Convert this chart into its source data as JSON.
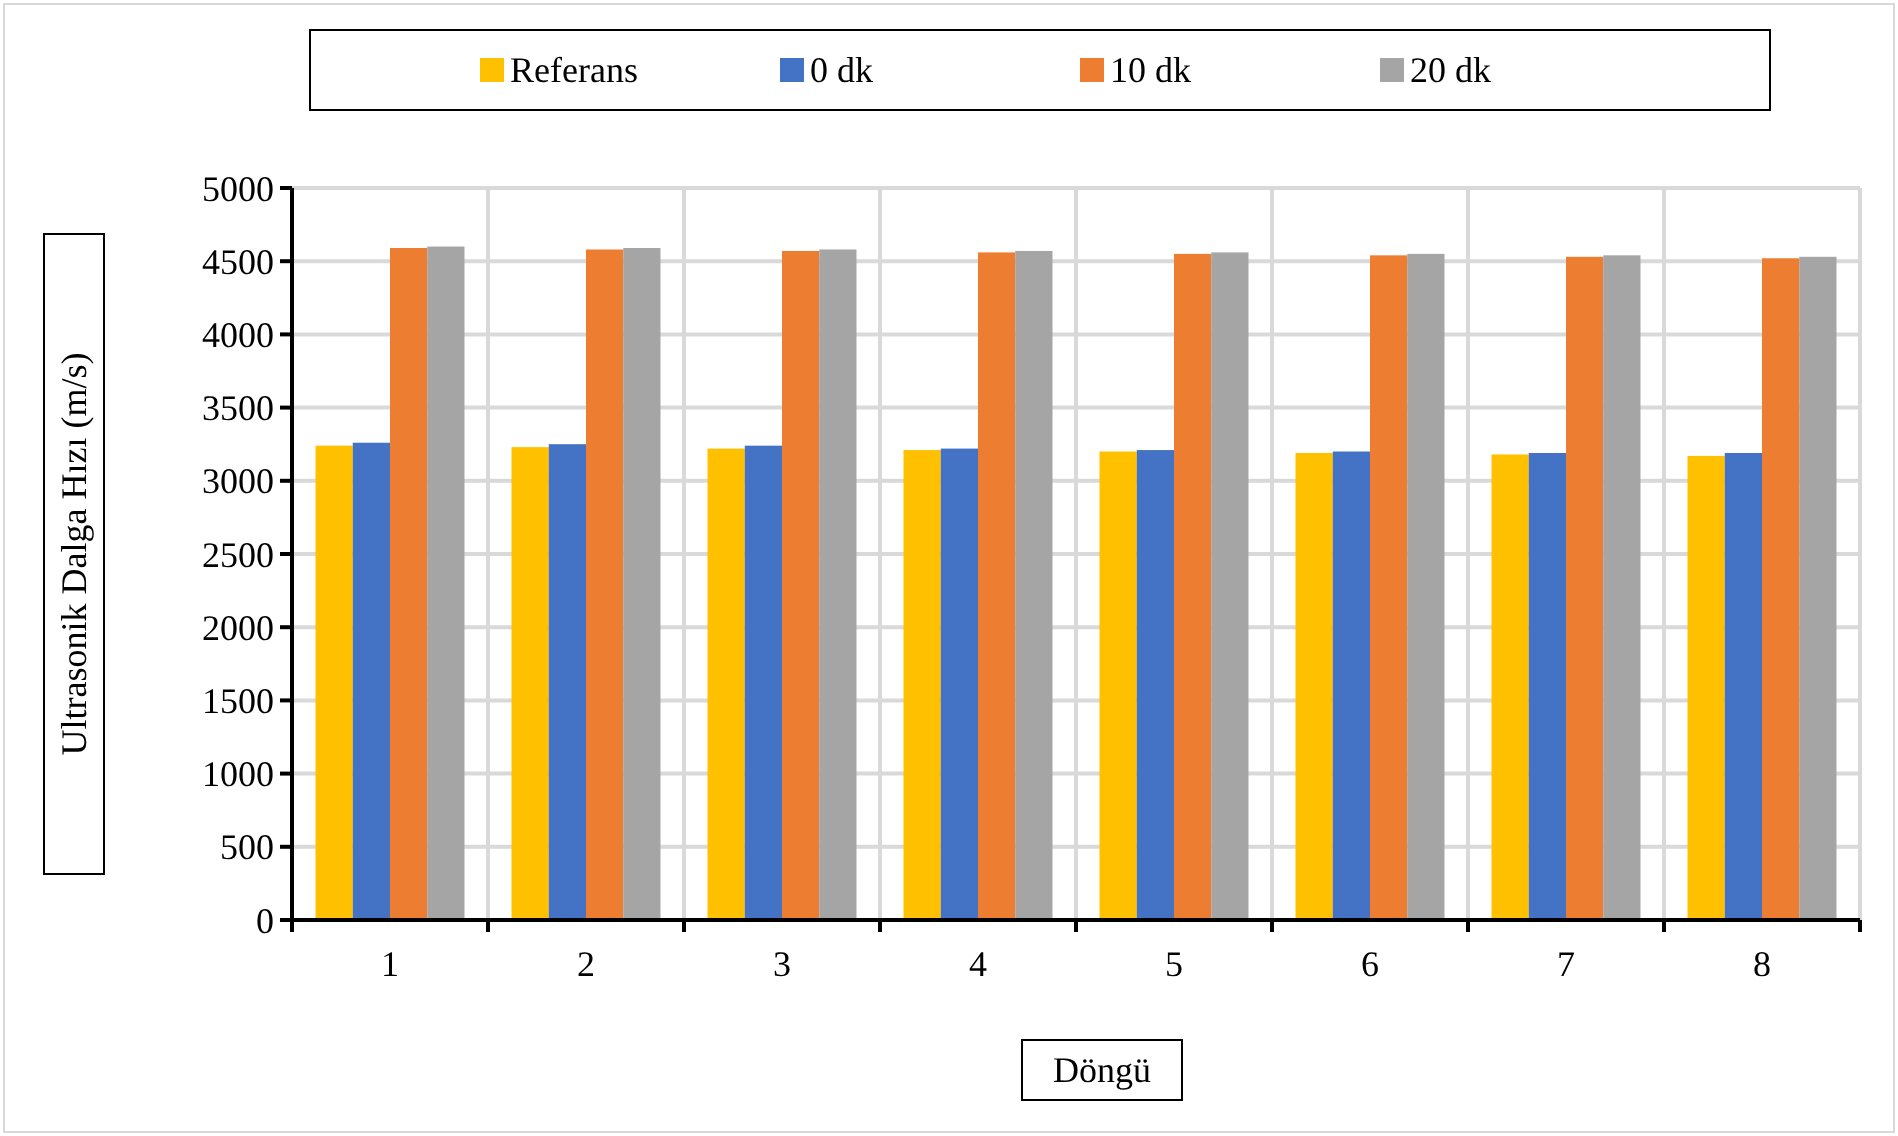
{
  "chart_data": {
    "type": "bar",
    "xlabel": "Döngü",
    "ylabel": "Ultrasonik Dalga Hızı (m/s)",
    "categories": [
      "1",
      "2",
      "3",
      "4",
      "5",
      "6",
      "7",
      "8"
    ],
    "series": [
      {
        "name": "Referans",
        "color": "#ffc000",
        "values": [
          3240,
          3230,
          3220,
          3210,
          3200,
          3190,
          3180,
          3170
        ]
      },
      {
        "name": "0 dk",
        "color": "#4472c4",
        "values": [
          3260,
          3250,
          3240,
          3220,
          3210,
          3200,
          3190,
          3190
        ]
      },
      {
        "name": "10 dk",
        "color": "#ed7d31",
        "values": [
          4590,
          4580,
          4570,
          4560,
          4550,
          4540,
          4530,
          4520
        ]
      },
      {
        "name": "20 dk",
        "color": "#a5a5a5",
        "values": [
          4600,
          4590,
          4580,
          4570,
          4560,
          4550,
          4540,
          4530
        ]
      }
    ],
    "ylim": [
      0,
      5000
    ],
    "yticks": [
      0,
      500,
      1000,
      1500,
      2000,
      2500,
      3000,
      3500,
      4000,
      4500,
      5000
    ],
    "grid": true,
    "legend": "top"
  }
}
